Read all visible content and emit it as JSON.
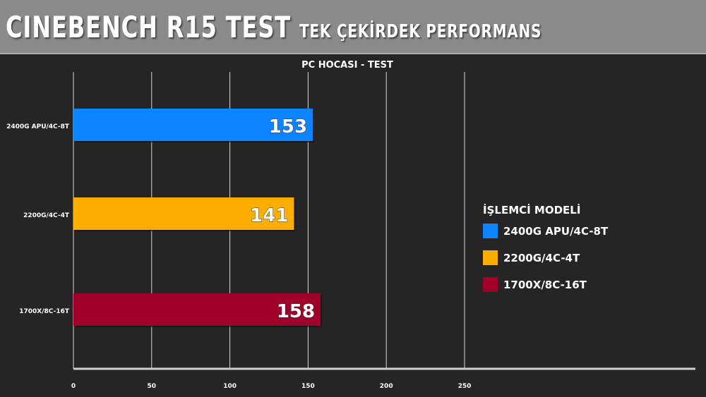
{
  "header": {
    "title": "CINEBENCH R15 TEST",
    "subtitle": "TEK ÇEKİRDEK PERFORMANS"
  },
  "chart_data": {
    "type": "bar",
    "orientation": "horizontal",
    "title": "PC HOCASI - TEST",
    "categories": [
      "2400G APU/4C-8T",
      "2200G/4C-4T",
      "1700X/8C-16T"
    ],
    "values": [
      153,
      141,
      158
    ],
    "colors": [
      "#0a84ff",
      "#ffae00",
      "#a0002a"
    ],
    "xlim": [
      0,
      250
    ],
    "xticks": [
      0,
      50,
      100,
      150,
      200,
      250
    ],
    "grid": true,
    "legend": {
      "title": "İŞLEMCİ MODELİ",
      "placement": "right",
      "entries": [
        "2400G APU/4C-8T",
        "2200G/4C-4T",
        "1700X/8C-16T"
      ]
    }
  }
}
